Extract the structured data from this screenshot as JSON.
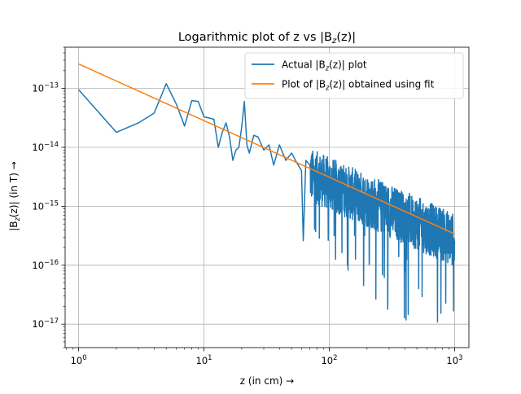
{
  "chart_data": {
    "type": "line",
    "title": "Logarithmic plot of z vs |B_z(z)|",
    "xlabel": "z (in cm)",
    "ylabel": "|B_z(z)| (in T)",
    "xscale": "log",
    "yscale": "log",
    "xlim": [
      0.78,
      1300
    ],
    "ylim": [
      4e-18,
      5e-13
    ],
    "x_ticks": [
      1,
      10,
      100,
      1000
    ],
    "x_tick_labels": [
      "10^0",
      "10^1",
      "10^2",
      "10^3"
    ],
    "y_ticks": [
      1e-17,
      1e-16,
      1e-15,
      1e-14,
      1e-13
    ],
    "y_tick_labels": [
      "10^-17",
      "10^-16",
      "10^-15",
      "10^-14",
      "10^-13"
    ],
    "grid": true,
    "legend_position": "top-right",
    "series": [
      {
        "name": "Actual |B_z(z)| plot",
        "color": "#1f77b4",
        "style": "noisy",
        "x": [
          1,
          2,
          3,
          4,
          5,
          6,
          7,
          8,
          9,
          10,
          12,
          13,
          14,
          15,
          16,
          17,
          18,
          19,
          20,
          21,
          22,
          23,
          25,
          27,
          30,
          33,
          36,
          40,
          45,
          50,
          55,
          60,
          62,
          65,
          70
        ],
        "y": [
          9.5e-14,
          1.8e-14,
          2.6e-14,
          3.8e-14,
          1.2e-13,
          5.5e-14,
          2.3e-14,
          6.2e-14,
          6e-14,
          3.3e-14,
          3e-14,
          1e-14,
          1.8e-14,
          2.6e-14,
          1.5e-14,
          6e-15,
          9e-15,
          1e-14,
          2.2e-14,
          6e-14,
          1.1e-14,
          8e-15,
          1.6e-14,
          1.5e-14,
          9e-15,
          1.1e-14,
          5e-15,
          1.1e-14,
          6e-15,
          8e-15,
          5.5e-15,
          4e-15,
          2.6e-16,
          6e-15,
          5e-15
        ],
        "noise_after_x": 70,
        "noise_samples": 930,
        "noise_spread_decades": 0.45,
        "noise_min_y": 6.5e-18
      },
      {
        "name": "Plot of |B_z(z)| obtained using fit",
        "color": "#ff7f0e",
        "x": [
          1,
          1000
        ],
        "y": [
          2.6e-13,
          3.4e-16
        ]
      }
    ]
  }
}
